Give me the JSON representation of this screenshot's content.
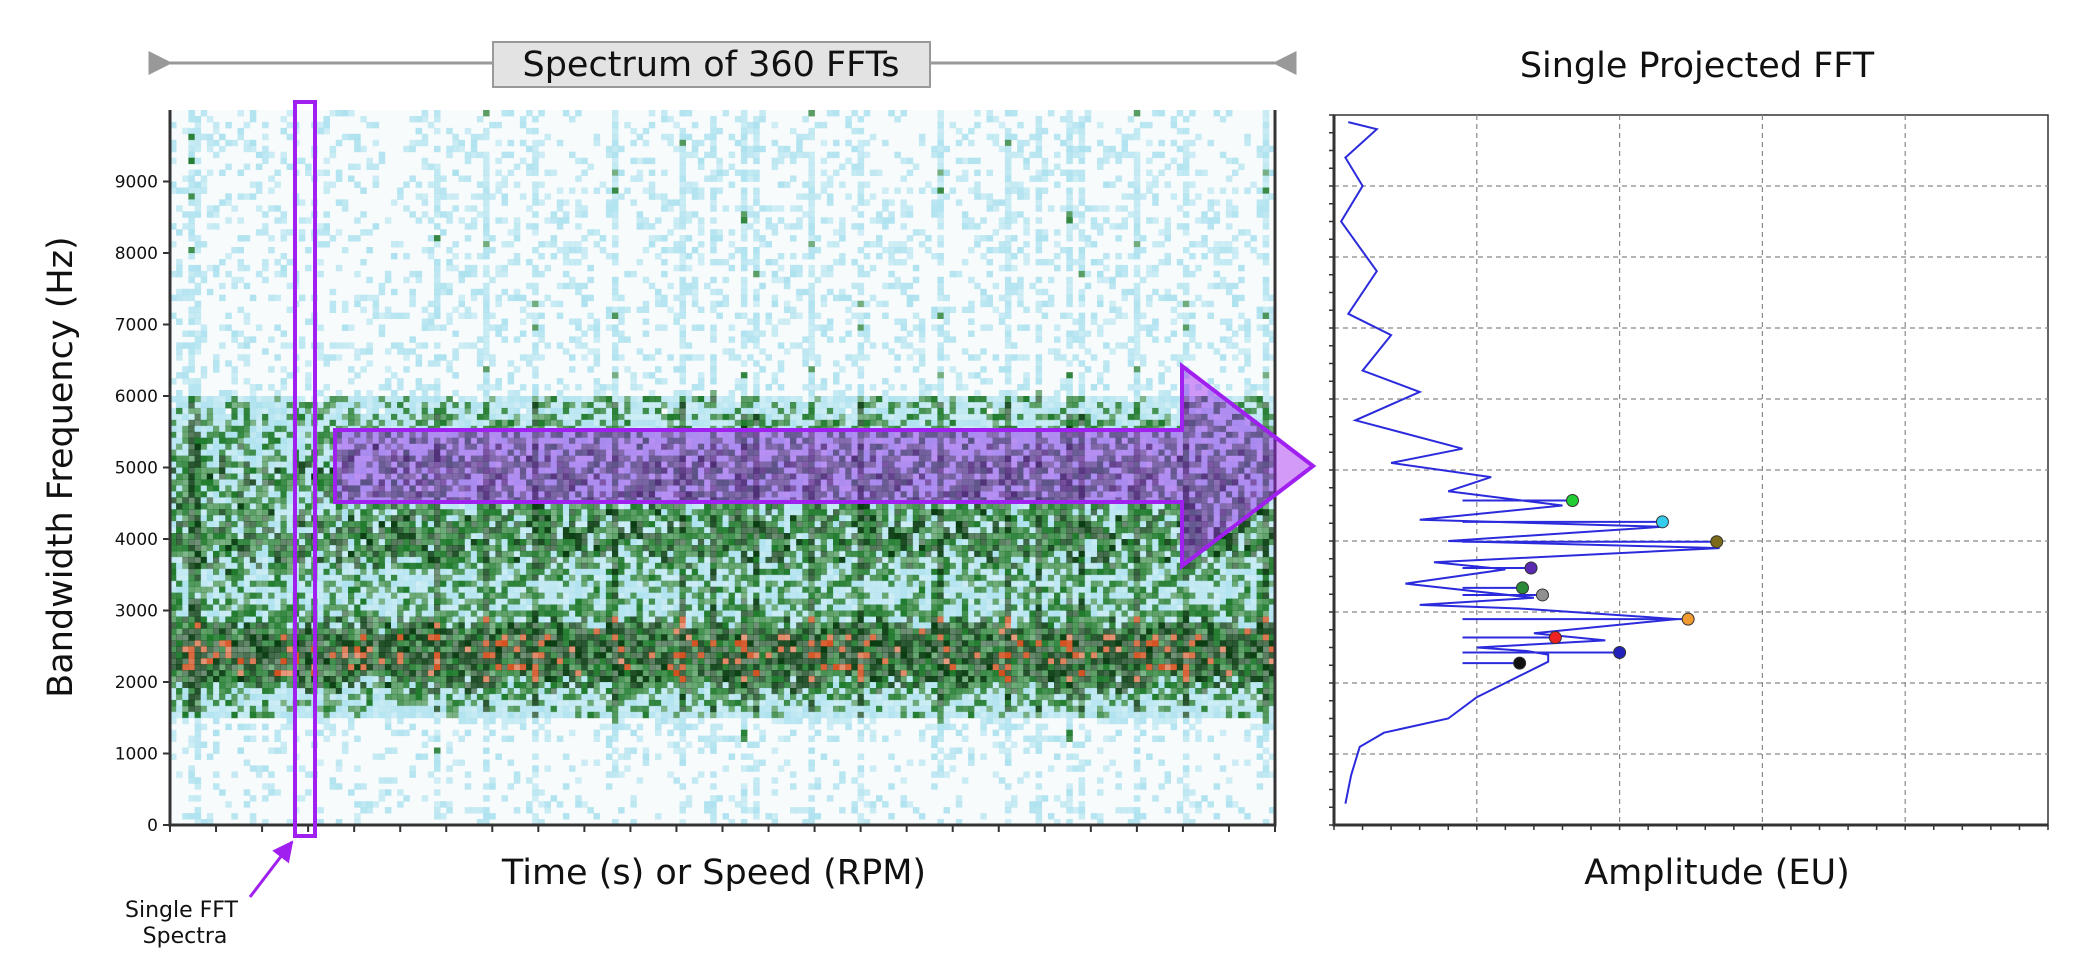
{
  "spectrogram": {
    "header": "Spectrum of 360 FFTs",
    "ylabel": "Bandwidth Frequency (Hz)",
    "xlabel": "Time (s) or Speed (RPM)",
    "annotation": "Single FFT\nSpectra",
    "colors": {
      "light": "#aee2ef",
      "mid": "#1f7a2c",
      "dark": "#0a3d12",
      "hot": "#d4501f",
      "accent": "#a020f0"
    }
  },
  "projection": {
    "title": "Single Projected FFT",
    "xlabel": "Amplitude (EU)",
    "line_color": "#2b2bdc"
  },
  "chart_data": [
    {
      "type": "heatmap",
      "title": "Spectrum of 360 FFTs",
      "xlabel": "Time (s) or Speed (RPM)",
      "ylabel": "Bandwidth Frequency (Hz)",
      "ylim": [
        0,
        10000
      ],
      "yticks": [
        0,
        1000,
        2000,
        3000,
        4000,
        5000,
        6000,
        7000,
        8000,
        9000
      ],
      "n_ffts": 360,
      "grid": false,
      "energy_bands_hz": [
        {
          "center": 2400,
          "intensity": "highest"
        },
        {
          "center": 4000,
          "intensity": "high"
        },
        {
          "center": 5000,
          "intensity": "medium"
        }
      ]
    },
    {
      "type": "line",
      "title": "Single Projected FFT",
      "xlabel": "Amplitude (EU)",
      "ylabel": "Bandwidth Frequency (Hz)",
      "ylim": [
        0,
        10000
      ],
      "xlim": [
        0,
        5
      ],
      "grid": true,
      "series": [
        {
          "points": [
            [
              0.08,
              300
            ],
            [
              0.12,
              700
            ],
            [
              0.18,
              1100
            ],
            [
              0.35,
              1300
            ],
            [
              0.8,
              1500
            ],
            [
              1.0,
              1800
            ],
            [
              1.3,
              2100
            ],
            [
              1.5,
              2300
            ],
            [
              1.5,
              2400
            ],
            [
              1.35,
              2450
            ],
            [
              1.0,
              2500
            ],
            [
              1.9,
              2600
            ],
            [
              1.4,
              2700
            ],
            [
              2.4,
              2900
            ],
            [
              1.3,
              3050
            ],
            [
              0.6,
              3100
            ],
            [
              1.4,
              3200
            ],
            [
              0.5,
              3400
            ],
            [
              1.2,
              3600
            ],
            [
              0.7,
              3700
            ],
            [
              2.7,
              3900
            ],
            [
              0.8,
              4000
            ],
            [
              2.3,
              4200
            ],
            [
              0.6,
              4300
            ],
            [
              1.6,
              4500
            ],
            [
              0.8,
              4700
            ],
            [
              1.1,
              4900
            ],
            [
              0.4,
              5100
            ],
            [
              0.9,
              5300
            ],
            [
              0.15,
              5700
            ],
            [
              0.6,
              6100
            ],
            [
              0.2,
              6400
            ],
            [
              0.4,
              6900
            ],
            [
              0.1,
              7200
            ],
            [
              0.3,
              7800
            ],
            [
              0.05,
              8500
            ],
            [
              0.2,
              9000
            ],
            [
              0.08,
              9400
            ],
            [
              0.3,
              9800
            ],
            [
              0.1,
              9900
            ]
          ]
        }
      ],
      "markers": [
        {
          "amp": 1.67,
          "freq": 4570,
          "color": "#22cc33"
        },
        {
          "amp": 2.3,
          "freq": 4270,
          "color": "#33ccee"
        },
        {
          "amp": 2.68,
          "freq": 3990,
          "color": "#7a6a1a"
        },
        {
          "amp": 1.38,
          "freq": 3620,
          "color": "#5a2ab0"
        },
        {
          "amp": 1.32,
          "freq": 3340,
          "color": "#2a8a3a"
        },
        {
          "amp": 1.46,
          "freq": 3240,
          "color": "#909090"
        },
        {
          "amp": 2.48,
          "freq": 2900,
          "color": "#f09a30"
        },
        {
          "amp": 1.55,
          "freq": 2640,
          "color": "#ee2222"
        },
        {
          "amp": 2.0,
          "freq": 2430,
          "color": "#2222bb"
        },
        {
          "amp": 1.3,
          "freq": 2280,
          "color": "#111111"
        }
      ]
    }
  ]
}
